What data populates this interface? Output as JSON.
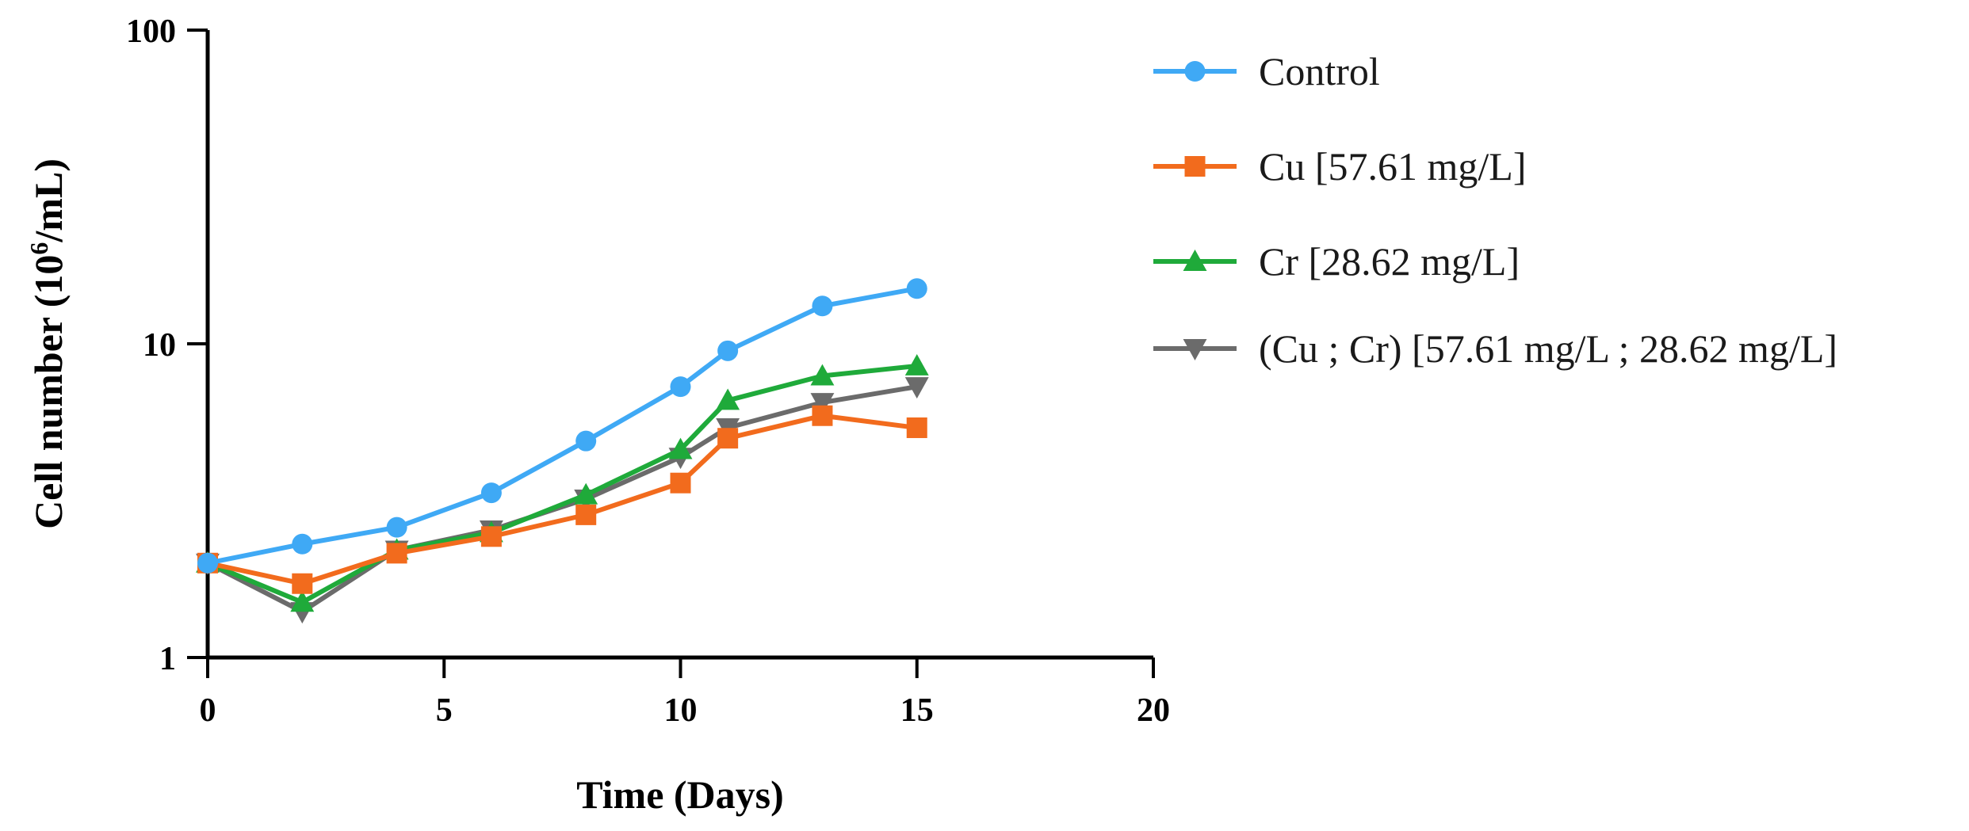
{
  "chart_data": {
    "type": "line",
    "yscale": "log",
    "xlabel": "Time (Days)",
    "ylabel_main": "Cell number (10",
    "ylabel_sup": "6",
    "ylabel_end": "/mL)",
    "xlim": [
      0,
      20
    ],
    "ylim": [
      1,
      100
    ],
    "xticks": [
      0,
      5,
      10,
      15,
      20
    ],
    "yticks": [
      1,
      10,
      100
    ],
    "xtick_labels": [
      "0",
      "5",
      "10",
      "15",
      "20"
    ],
    "ytick_labels": [
      "1",
      "10",
      "100"
    ],
    "legend_position": "right",
    "series": [
      {
        "name": "Control",
        "color": "#3FA9F5",
        "marker": "circle",
        "x": [
          0,
          2,
          4,
          6,
          8,
          10,
          11,
          13,
          15
        ],
        "y": [
          2.0,
          2.3,
          2.6,
          3.35,
          4.9,
          7.3,
          9.5,
          13.2,
          15.0
        ]
      },
      {
        "name": "Cu [57.61 mg/L]",
        "color": "#F26B1D",
        "marker": "square",
        "x": [
          0,
          2,
          4,
          6,
          8,
          10,
          11,
          13,
          15
        ],
        "y": [
          2.0,
          1.72,
          2.15,
          2.43,
          2.85,
          3.6,
          5.0,
          5.9,
          5.4
        ]
      },
      {
        "name": "Cr [28.62 mg/L]",
        "color": "#1FAA3A",
        "marker": "triangle-up",
        "x": [
          0,
          2,
          4,
          6,
          8,
          10,
          11,
          13,
          15
        ],
        "y": [
          2.0,
          1.5,
          2.2,
          2.5,
          3.3,
          4.6,
          6.6,
          7.9,
          8.5
        ]
      },
      {
        "name": "(Cu ; Cr) [57.61 mg/L ; 28.62 mg/L]",
        "color": "#6B6B6B",
        "marker": "triangle-down",
        "x": [
          0,
          2,
          4,
          6,
          8,
          10,
          11,
          13,
          15
        ],
        "y": [
          2.0,
          1.4,
          2.2,
          2.55,
          3.2,
          4.35,
          5.4,
          6.5,
          7.3
        ]
      }
    ]
  }
}
